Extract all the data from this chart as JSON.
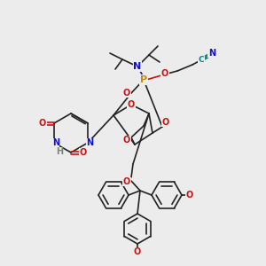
{
  "bg_color": "#ececec",
  "bond_color": "#222222",
  "colors": {
    "N": "#1010cc",
    "O": "#cc1010",
    "P": "#cc8800",
    "C_nitrile": "#008888",
    "N_nitrile": "#1010cc",
    "H": "#778877"
  },
  "figsize": [
    3.0,
    3.0
  ],
  "dpi": 100
}
